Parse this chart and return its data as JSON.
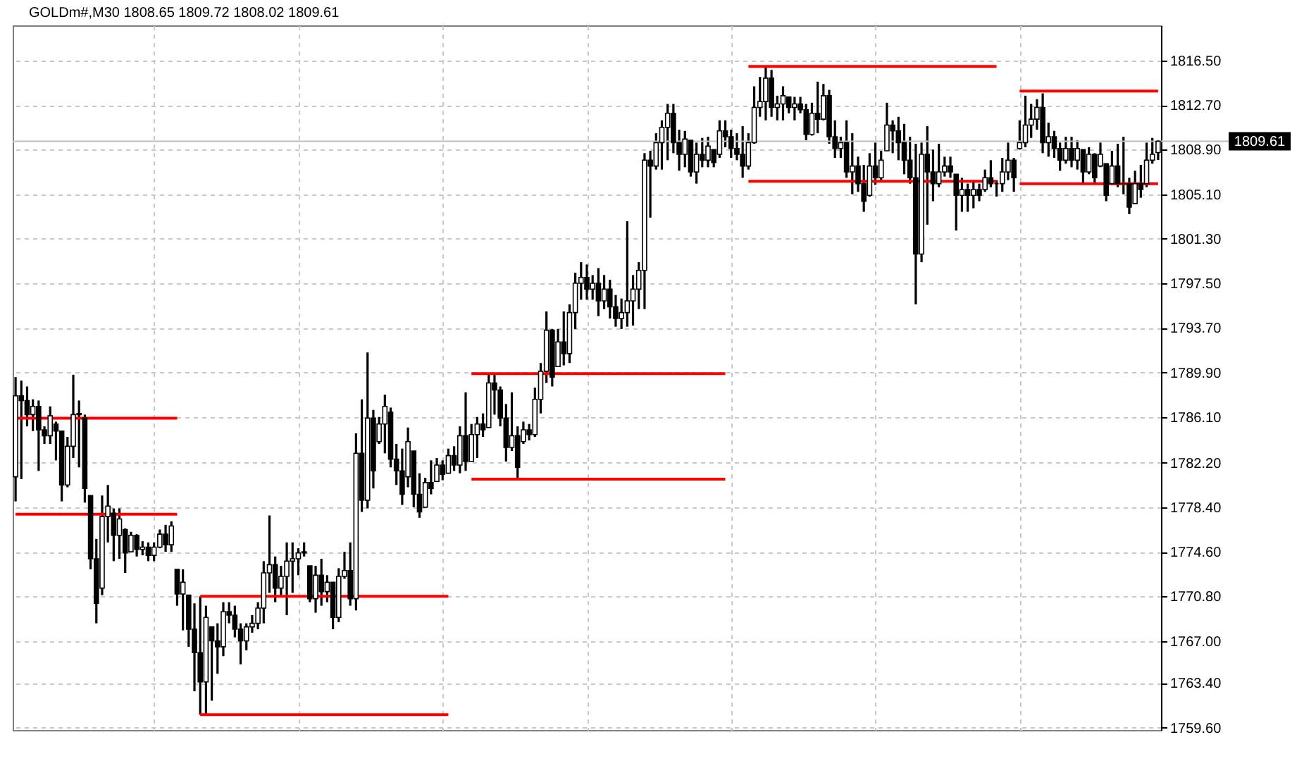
{
  "chart_data": {
    "type": "candlestick",
    "title": "GOLDm#,M30 1808.65 1809.72 1808.02 1809.61",
    "color": "#000000",
    "categories": [
      null,
      null,
      null,
      null,
      null,
      null,
      null,
      null,
      null,
      null,
      null,
      null,
      null,
      null,
      null,
      null,
      null,
      null,
      null,
      null,
      null,
      null,
      null,
      null,
      null,
      null,
      null,
      null,
      null,
      null,
      null,
      null,
      null,
      null,
      null,
      null,
      null,
      null,
      null,
      null,
      null,
      null,
      null,
      null,
      null,
      null,
      null,
      null,
      null,
      null,
      null,
      null,
      null,
      null,
      null,
      null,
      null,
      null,
      null,
      null,
      null,
      null,
      null,
      null,
      null,
      null,
      null,
      null,
      null,
      null,
      null,
      null,
      null,
      null,
      null,
      null,
      null,
      null,
      null,
      null,
      null,
      null,
      null,
      null,
      null,
      null,
      null,
      null,
      null,
      null,
      null,
      null,
      null,
      null,
      null,
      null,
      null,
      null,
      null,
      null,
      null,
      null,
      null,
      null,
      null,
      null,
      null,
      null,
      null,
      null,
      null,
      null,
      null,
      null,
      null,
      null,
      null,
      null,
      null,
      null,
      null,
      null,
      null,
      null,
      null,
      null,
      null,
      null,
      null,
      null,
      null,
      null,
      null,
      null,
      null,
      null,
      null,
      null,
      null,
      null,
      null,
      null,
      null,
      null,
      null,
      null,
      null,
      null,
      null,
      null,
      null,
      null,
      null,
      null,
      null,
      null,
      null,
      null,
      null,
      null,
      null,
      null,
      null,
      null,
      null,
      null,
      null,
      null,
      null,
      null,
      null,
      null,
      null,
      null,
      null,
      null,
      null,
      null,
      null,
      null,
      null,
      null,
      null,
      null,
      null,
      null,
      null,
      null,
      null,
      null,
      null,
      null,
      null,
      null,
      null,
      null,
      null,
      null,
      null
    ],
    "ohlc": [
      [
        1781.0,
        1789.5,
        1778.9,
        1787.9
      ],
      [
        1787.9,
        1789.2,
        1780.8,
        1787.5
      ],
      [
        1787.5,
        1788.7,
        1785.3,
        1786.3
      ],
      [
        1786.3,
        1787.6,
        1784.9,
        1787.0
      ],
      [
        1787.0,
        1787.5,
        1781.5,
        1785.0
      ],
      [
        1785.0,
        1785.3,
        1783.8,
        1784.5
      ],
      [
        1784.5,
        1787.0,
        1783.8,
        1786.2
      ],
      [
        1785.5,
        1785.7,
        1782.4,
        1784.9
      ],
      [
        1784.9,
        1784.9,
        1778.9,
        1780.3
      ],
      [
        1780.3,
        1784.4,
        1780.1,
        1783.6
      ],
      [
        1783.6,
        1789.7,
        1782.6,
        1786.3
      ],
      [
        1786.3,
        1787.5,
        1781.8,
        1786.4
      ],
      [
        1786.0,
        1786.3,
        1778.8,
        1780.0
      ],
      [
        1779.4,
        1779.4,
        1773.1,
        1774.0
      ],
      [
        1774.0,
        1775.7,
        1768.5,
        1770.2
      ],
      [
        1771.5,
        1779.4,
        1770.9,
        1777.6
      ],
      [
        1777.6,
        1780.3,
        1775.4,
        1778.5
      ],
      [
        1777.9,
        1778.3,
        1773.8,
        1776.0
      ],
      [
        1776.0,
        1778.3,
        1774.0,
        1777.4
      ],
      [
        1776.5,
        1776.6,
        1772.8,
        1774.5
      ],
      [
        1774.6,
        1776.3,
        1774.6,
        1776.0
      ],
      [
        1776.0,
        1776.1,
        1774.2,
        1774.8
      ],
      [
        1774.8,
        1775.5,
        1774.3,
        1775.0
      ],
      [
        1775.0,
        1775.4,
        1773.8,
        1774.3
      ],
      [
        1774.3,
        1775.4,
        1773.8,
        1775.0
      ],
      [
        1775.0,
        1776.5,
        1774.9,
        1776.1
      ],
      [
        1776.1,
        1776.9,
        1774.6,
        1775.2
      ],
      [
        1775.2,
        1777.2,
        1774.6,
        1776.8
      ],
      [
        1773.1,
        1773.1,
        1770.0,
        1771.0
      ],
      [
        1771.0,
        1773.1,
        1767.9,
        1772.0
      ],
      [
        1770.9,
        1770.9,
        1766.5,
        1768.0
      ],
      [
        1768.0,
        1770.2,
        1762.7,
        1766.0
      ],
      [
        1766.0,
        1770.8,
        1760.7,
        1763.5
      ],
      [
        1763.5,
        1770.0,
        1760.7,
        1769.0
      ],
      [
        1768.2,
        1768.2,
        1761.9,
        1767.0
      ],
      [
        1767.0,
        1768.5,
        1764.2,
        1766.5
      ],
      [
        1766.5,
        1770.3,
        1765.7,
        1769.5
      ],
      [
        1769.5,
        1770.3,
        1768.5,
        1769.2
      ],
      [
        1769.2,
        1770.0,
        1767.3,
        1768.0
      ],
      [
        1768.0,
        1768.5,
        1765.0,
        1767.0
      ],
      [
        1767.0,
        1768.5,
        1766.2,
        1768.2
      ],
      [
        1768.2,
        1769.2,
        1767.7,
        1768.5
      ],
      [
        1768.5,
        1770.3,
        1768.0,
        1769.8
      ],
      [
        1769.8,
        1773.8,
        1768.5,
        1772.8
      ],
      [
        1772.8,
        1777.7,
        1771.1,
        1773.5
      ],
      [
        1773.5,
        1774.2,
        1770.3,
        1771.5
      ],
      [
        1771.5,
        1773.4,
        1770.8,
        1772.5
      ],
      [
        1772.5,
        1775.4,
        1769.2,
        1773.8
      ],
      [
        1773.8,
        1775.4,
        1771.1,
        1774.0
      ],
      [
        1774.0,
        1774.9,
        1772.6,
        1774.5
      ],
      [
        1774.5,
        1775.4,
        1774.2,
        1774.6
      ],
      [
        1773.4,
        1773.4,
        1770.3,
        1770.6
      ],
      [
        1770.6,
        1773.4,
        1769.4,
        1772.6
      ],
      [
        1772.6,
        1774.0,
        1770.0,
        1771.2
      ],
      [
        1771.2,
        1772.6,
        1770.3,
        1772.0
      ],
      [
        1772.0,
        1772.0,
        1768.0,
        1769.0
      ],
      [
        1769.0,
        1773.2,
        1768.6,
        1772.5
      ],
      [
        1772.5,
        1774.6,
        1772.3,
        1773.0
      ],
      [
        1773.0,
        1775.4,
        1770.0,
        1770.6
      ],
      [
        1770.6,
        1784.7,
        1769.6,
        1783.0
      ],
      [
        1783.0,
        1787.6,
        1778.0,
        1779.0
      ],
      [
        1779.0,
        1791.6,
        1778.3,
        1786.0
      ],
      [
        1786.0,
        1786.7,
        1780.0,
        1781.5
      ],
      [
        1784.0,
        1786.1,
        1783.8,
        1785.5
      ],
      [
        1785.5,
        1788.0,
        1783.0,
        1787.0
      ],
      [
        1786.5,
        1786.9,
        1781.8,
        1782.5
      ],
      [
        1782.5,
        1783.8,
        1780.3,
        1781.5
      ],
      [
        1781.5,
        1783.4,
        1778.6,
        1779.5
      ],
      [
        1781.0,
        1785.2,
        1780.1,
        1784.0
      ],
      [
        1783.2,
        1783.2,
        1778.4,
        1779.5
      ],
      [
        1779.5,
        1781.3,
        1777.5,
        1778.0
      ],
      [
        1778.4,
        1780.9,
        1778.4,
        1780.5
      ],
      [
        1780.5,
        1782.4,
        1779.5,
        1780.0
      ],
      [
        1780.6,
        1782.6,
        1780.6,
        1782.0
      ],
      [
        1782.0,
        1782.4,
        1780.7,
        1781.2
      ],
      [
        1781.3,
        1783.4,
        1781.3,
        1782.8
      ],
      [
        1782.8,
        1783.6,
        1781.5,
        1782.0
      ],
      [
        1782.0,
        1785.3,
        1781.3,
        1784.5
      ],
      [
        1784.5,
        1788.2,
        1781.5,
        1782.3
      ],
      [
        1782.3,
        1785.5,
        1782.3,
        1784.6
      ],
      [
        1784.6,
        1786.1,
        1782.6,
        1785.5
      ],
      [
        1785.5,
        1786.4,
        1784.4,
        1785.0
      ],
      [
        1785.2,
        1789.8,
        1785.2,
        1789.0
      ],
      [
        1789.0,
        1789.8,
        1786.3,
        1788.4
      ],
      [
        1788.4,
        1788.7,
        1785.3,
        1786.0
      ],
      [
        1786.0,
        1787.2,
        1782.3,
        1783.5
      ],
      [
        1783.5,
        1788.2,
        1783.2,
        1784.5
      ],
      [
        1784.5,
        1785.3,
        1780.9,
        1781.8
      ],
      [
        1784.0,
        1785.7,
        1783.8,
        1785.0
      ],
      [
        1785.0,
        1785.5,
        1784.1,
        1784.6
      ],
      [
        1784.6,
        1788.6,
        1784.4,
        1787.6
      ],
      [
        1787.6,
        1790.7,
        1786.4,
        1790.0
      ],
      [
        1790.0,
        1795.1,
        1789.0,
        1793.5
      ],
      [
        1793.5,
        1793.6,
        1788.7,
        1789.5
      ],
      [
        1790.4,
        1793.6,
        1790.4,
        1792.5
      ],
      [
        1792.5,
        1795.1,
        1790.5,
        1791.5
      ],
      [
        1791.5,
        1795.7,
        1790.7,
        1795.0
      ],
      [
        1795.0,
        1798.4,
        1793.6,
        1797.5
      ],
      [
        1797.5,
        1799.3,
        1796.1,
        1798.0
      ],
      [
        1798.0,
        1799.1,
        1796.1,
        1797.0
      ],
      [
        1797.0,
        1798.2,
        1796.1,
        1797.5
      ],
      [
        1797.5,
        1798.8,
        1794.7,
        1796.0
      ],
      [
        1796.0,
        1798.2,
        1795.3,
        1797.0
      ],
      [
        1797.0,
        1797.8,
        1794.5,
        1795.5
      ],
      [
        1795.5,
        1796.5,
        1793.8,
        1794.5
      ],
      [
        1794.5,
        1796.2,
        1793.6,
        1795.0
      ],
      [
        1795.0,
        1802.8,
        1793.8,
        1796.0
      ],
      [
        1796.0,
        1798.2,
        1793.9,
        1797.0
      ],
      [
        1797.0,
        1799.3,
        1795.3,
        1798.6
      ],
      [
        1798.6,
        1808.6,
        1795.3,
        1808.0
      ],
      [
        1808.0,
        1808.8,
        1803.1,
        1807.5
      ],
      [
        1807.5,
        1810.3,
        1807.2,
        1809.5
      ],
      [
        1809.5,
        1811.4,
        1807.2,
        1810.8
      ],
      [
        1810.8,
        1812.8,
        1808.0,
        1812.0
      ],
      [
        1812.0,
        1812.8,
        1808.6,
        1809.5
      ],
      [
        1809.5,
        1810.6,
        1807.1,
        1808.5
      ],
      [
        1808.5,
        1810.5,
        1807.4,
        1809.8
      ],
      [
        1809.7,
        1809.7,
        1806.6,
        1807.0
      ],
      [
        1807.0,
        1809.5,
        1806.0,
        1808.5
      ],
      [
        1808.5,
        1809.9,
        1807.4,
        1808.0
      ],
      [
        1808.0,
        1810.0,
        1807.4,
        1809.2
      ],
      [
        1808.9,
        1808.9,
        1807.4,
        1807.8
      ],
      [
        1808.5,
        1811.4,
        1808.2,
        1810.5
      ],
      [
        1810.5,
        1811.4,
        1809.1,
        1810.0
      ],
      [
        1810.0,
        1810.6,
        1808.2,
        1809.0
      ],
      [
        1809.0,
        1810.3,
        1808.0,
        1808.5
      ],
      [
        1808.5,
        1810.9,
        1806.5,
        1807.5
      ],
      [
        1807.5,
        1810.3,
        1807.2,
        1809.5
      ],
      [
        1809.5,
        1814.3,
        1809.4,
        1812.5
      ],
      [
        1812.5,
        1815.1,
        1811.7,
        1813.0
      ],
      [
        1813.0,
        1816.0,
        1811.4,
        1815.0
      ],
      [
        1815.0,
        1815.7,
        1811.7,
        1812.5
      ],
      [
        1812.5,
        1813.5,
        1811.4,
        1812.8
      ],
      [
        1812.8,
        1814.3,
        1811.4,
        1813.5
      ],
      [
        1813.4,
        1813.4,
        1812.0,
        1812.5
      ],
      [
        1812.5,
        1813.4,
        1811.4,
        1812.8
      ],
      [
        1812.8,
        1813.4,
        1812.0,
        1812.3
      ],
      [
        1812.3,
        1812.8,
        1809.7,
        1810.2
      ],
      [
        1810.2,
        1812.9,
        1810.1,
        1812.0
      ],
      [
        1812.0,
        1814.7,
        1810.3,
        1811.5
      ],
      [
        1811.5,
        1814.5,
        1811.4,
        1813.5
      ],
      [
        1813.5,
        1814.0,
        1809.4,
        1810.0
      ],
      [
        1810.0,
        1811.4,
        1808.2,
        1809.0
      ],
      [
        1809.0,
        1810.0,
        1808.2,
        1809.5
      ],
      [
        1809.5,
        1811.4,
        1806.5,
        1807.0
      ],
      [
        1807.0,
        1810.3,
        1805.1,
        1807.5
      ],
      [
        1807.5,
        1808.3,
        1805.3,
        1806.0
      ],
      [
        1806.0,
        1807.6,
        1803.6,
        1804.5
      ],
      [
        1805.0,
        1808.6,
        1804.9,
        1807.5
      ],
      [
        1807.5,
        1809.5,
        1805.9,
        1806.5
      ],
      [
        1806.5,
        1808.8,
        1806.3,
        1808.0
      ],
      [
        1808.8,
        1812.9,
        1808.8,
        1811.0
      ],
      [
        1811.0,
        1811.4,
        1808.6,
        1810.5
      ],
      [
        1810.5,
        1811.7,
        1808.0,
        1809.5
      ],
      [
        1809.5,
        1811.1,
        1806.8,
        1808.0
      ],
      [
        1808.0,
        1810.0,
        1806.0,
        1806.5
      ],
      [
        1806.5,
        1809.4,
        1795.7,
        1800.0
      ],
      [
        1800.0,
        1809.5,
        1799.3,
        1808.5
      ],
      [
        1808.5,
        1810.9,
        1802.5,
        1807.0
      ],
      [
        1807.0,
        1808.9,
        1804.5,
        1806.0
      ],
      [
        1806.0,
        1809.4,
        1805.7,
        1807.0
      ],
      [
        1807.0,
        1808.3,
        1806.6,
        1807.5
      ],
      [
        1807.5,
        1808.3,
        1806.5,
        1807.0
      ],
      [
        1806.8,
        1806.8,
        1802.0,
        1805.0
      ],
      [
        1805.0,
        1806.5,
        1803.6,
        1805.5
      ],
      [
        1805.5,
        1806.0,
        1803.6,
        1805.0
      ],
      [
        1805.0,
        1806.3,
        1803.9,
        1805.5
      ],
      [
        1805.5,
        1806.0,
        1804.5,
        1805.0
      ],
      [
        1805.5,
        1807.2,
        1805.3,
        1806.5
      ],
      [
        1806.5,
        1808.0,
        1805.7,
        1806.0
      ],
      [
        1806.0,
        1806.3,
        1804.9,
        1806.0
      ],
      [
        1806.0,
        1808.2,
        1805.3,
        1807.0
      ],
      [
        1807.0,
        1809.5,
        1806.3,
        1808.0
      ],
      [
        1808.0,
        1808.2,
        1805.3,
        1806.5
      ],
      [
        1809.0,
        1811.4,
        1808.9,
        1809.5
      ],
      [
        1809.5,
        1813.5,
        1809.1,
        1811.0
      ],
      [
        1811.0,
        1812.8,
        1809.9,
        1811.5
      ],
      [
        1811.5,
        1813.2,
        1810.6,
        1812.5
      ],
      [
        1812.5,
        1813.7,
        1808.6,
        1809.5
      ],
      [
        1809.5,
        1811.2,
        1808.3,
        1810.0
      ],
      [
        1810.0,
        1810.5,
        1808.2,
        1809.0
      ],
      [
        1809.0,
        1809.5,
        1807.1,
        1808.0
      ],
      [
        1808.0,
        1810.0,
        1807.7,
        1809.0
      ],
      [
        1809.0,
        1810.0,
        1807.4,
        1808.0
      ],
      [
        1808.0,
        1809.7,
        1807.2,
        1809.0
      ],
      [
        1808.9,
        1808.9,
        1806.0,
        1807.0
      ],
      [
        1807.0,
        1809.1,
        1806.8,
        1808.5
      ],
      [
        1808.5,
        1808.6,
        1806.0,
        1806.5
      ],
      [
        1807.5,
        1809.5,
        1807.4,
        1808.5
      ],
      [
        1807.7,
        1807.7,
        1804.5,
        1805.0
      ],
      [
        1806.0,
        1808.8,
        1805.9,
        1807.5
      ],
      [
        1807.5,
        1809.4,
        1805.7,
        1806.0
      ],
      [
        1806.0,
        1810.0,
        1805.1,
        1806.0
      ],
      [
        1806.0,
        1806.5,
        1803.4,
        1804.0
      ],
      [
        1804.3,
        1807.1,
        1804.3,
        1806.0
      ],
      [
        1806.0,
        1807.6,
        1804.8,
        1805.5
      ],
      [
        1806.0,
        1809.5,
        1805.7,
        1808.0
      ],
      [
        1808.0,
        1809.9,
        1807.7,
        1808.5
      ],
      [
        1808.65,
        1809.72,
        1808.02,
        1809.61
      ]
    ],
    "series": [
      {
        "type": "line",
        "color": "#ff0000",
        "values": [
          1786,
          1786,
          1786,
          1786,
          1786,
          1786,
          1786,
          1786,
          1786,
          1786,
          1786,
          1786,
          1786,
          1786,
          1786,
          1786,
          1786,
          1786,
          1786,
          1786,
          1786,
          1786,
          1786,
          1786,
          1786,
          1786,
          1786,
          1786,
          1786,
          null,
          null,
          null,
          1770.8,
          1770.8,
          1770.8,
          1770.8,
          1770.8,
          1770.8,
          1770.8,
          1770.8,
          1770.8,
          1770.8,
          1770.8,
          1770.8,
          1770.8,
          1770.8,
          1770.8,
          1770.8,
          1770.8,
          1770.8,
          1770.8,
          1770.8,
          1770.8,
          1770.8,
          1770.8,
          1770.8,
          1770.8,
          1770.8,
          1770.8,
          1770.8,
          1770.8,
          1770.8,
          1770.8,
          1770.8,
          1770.8,
          1770.8,
          1770.8,
          1770.8,
          1770.8,
          1770.8,
          1770.8,
          1770.8,
          1770.8,
          1770.8,
          1770.8,
          1770.8,
          null,
          null,
          null,
          1789.8,
          1789.8,
          1789.8,
          1789.8,
          1789.8,
          1789.8,
          1789.8,
          1789.8,
          1789.8,
          1789.8,
          1789.8,
          1789.8,
          1789.8,
          1789.8,
          1789.8,
          1789.8,
          1789.8,
          1789.8,
          1789.8,
          1789.8,
          1789.8,
          1789.8,
          1789.8,
          1789.8,
          1789.8,
          1789.8,
          1789.8,
          1789.8,
          1789.8,
          1789.8,
          1789.8,
          1789.8,
          1789.8,
          1789.8,
          1789.8,
          1789.8,
          1789.8,
          1789.8,
          1789.8,
          1789.8,
          1789.8,
          1789.8,
          1789.8,
          1789.8,
          1789.8,
          null,
          null,
          null,
          1816,
          1816,
          1816,
          1816,
          1816,
          1816,
          1816,
          1816,
          1816,
          1816,
          1816,
          1816,
          1816,
          1816,
          1816,
          1816,
          1816,
          1816,
          1816,
          1816,
          1816,
          1816,
          1816,
          1816,
          1816,
          1816,
          1816,
          1816,
          1816,
          1816,
          1816,
          1816,
          1816,
          1816,
          1816,
          1816,
          1816,
          1816,
          1816,
          1816,
          1816,
          1816,
          1816,
          1816,
          null,
          null,
          null,
          1813.9,
          1813.9,
          1813.9,
          1813.9,
          1813.9,
          1813.9,
          1813.9,
          1813.9,
          1813.9,
          1813.9,
          1813.9,
          1813.9,
          1813.9,
          1813.9,
          1813.9,
          1813.9,
          1813.9,
          1813.9,
          1813.9,
          1813.9,
          1813.9,
          1813.9,
          1813.9,
          1813.9,
          1813.9
        ]
      },
      {
        "type": "line",
        "color": "#ff0000",
        "values": [
          1777.8,
          1777.8,
          1777.8,
          1777.8,
          1777.8,
          1777.8,
          1777.8,
          1777.8,
          1777.8,
          1777.8,
          1777.8,
          1777.8,
          1777.8,
          1777.8,
          1777.8,
          1777.8,
          1777.8,
          1777.8,
          1777.8,
          1777.8,
          1777.8,
          1777.8,
          1777.8,
          1777.8,
          1777.8,
          1777.8,
          1777.8,
          1777.8,
          1777.8,
          null,
          null,
          null,
          1760.7,
          1760.7,
          1760.7,
          1760.7,
          1760.7,
          1760.7,
          1760.7,
          1760.7,
          1760.7,
          1760.7,
          1760.7,
          1760.7,
          1760.7,
          1760.7,
          1760.7,
          1760.7,
          1760.7,
          1760.7,
          1760.7,
          1760.7,
          1760.7,
          1760.7,
          1760.7,
          1760.7,
          1760.7,
          1760.7,
          1760.7,
          1760.7,
          1760.7,
          1760.7,
          1760.7,
          1760.7,
          1760.7,
          1760.7,
          1760.7,
          1760.7,
          1760.7,
          1760.7,
          1760.7,
          1760.7,
          1760.7,
          1760.7,
          1760.7,
          1760.7,
          null,
          null,
          null,
          1780.8,
          1780.8,
          1780.8,
          1780.8,
          1780.8,
          1780.8,
          1780.8,
          1780.8,
          1780.8,
          1780.8,
          1780.8,
          1780.8,
          1780.8,
          1780.8,
          1780.8,
          1780.8,
          1780.8,
          1780.8,
          1780.8,
          1780.8,
          1780.8,
          1780.8,
          1780.8,
          1780.8,
          1780.8,
          1780.8,
          1780.8,
          1780.8,
          1780.8,
          1780.8,
          1780.8,
          1780.8,
          1780.8,
          1780.8,
          1780.8,
          1780.8,
          1780.8,
          1780.8,
          1780.8,
          1780.8,
          1780.8,
          1780.8,
          1780.8,
          1780.8,
          1780.8,
          null,
          null,
          null,
          1806.2,
          1806.2,
          1806.2,
          1806.2,
          1806.2,
          1806.2,
          1806.2,
          1806.2,
          1806.2,
          1806.2,
          1806.2,
          1806.2,
          1806.2,
          1806.2,
          1806.2,
          1806.2,
          1806.2,
          1806.2,
          1806.2,
          1806.2,
          1806.2,
          1806.2,
          1806.2,
          1806.2,
          1806.2,
          1806.2,
          1806.2,
          1806.2,
          1806.2,
          1806.2,
          1806.2,
          1806.2,
          1806.2,
          1806.2,
          1806.2,
          1806.2,
          1806.2,
          1806.2,
          1806.2,
          1806.2,
          1806.2,
          1806.2,
          1806.2,
          1806.2,
          null,
          null,
          null,
          1806,
          1806,
          1806,
          1806,
          1806,
          1806,
          1806,
          1806,
          1806,
          1806,
          1806,
          1806,
          1806,
          1806,
          1806,
          1806,
          1806,
          1806,
          1806,
          1806,
          1806,
          1806,
          1806,
          1806,
          1806
        ]
      }
    ],
    "ylim": [
      1759.4,
      1819.5
    ],
    "yticks": [
      {
        "value": 1759.6,
        "label": "1759.60"
      },
      {
        "value": 1763.4,
        "label": "1763.40"
      },
      {
        "value": 1767,
        "label": "1767.00"
      },
      {
        "value": 1770.8,
        "label": "1770.80"
      },
      {
        "value": 1774.6,
        "label": "1774.60"
      },
      {
        "value": 1778.4,
        "label": "1778.40"
      },
      {
        "value": 1782.2,
        "label": "1782.20"
      },
      {
        "value": 1786.1,
        "label": "1786.10"
      },
      {
        "value": 1789.9,
        "label": "1789.90"
      },
      {
        "value": 1793.7,
        "label": "1793.70"
      },
      {
        "value": 1797.5,
        "label": "1797.50"
      },
      {
        "value": 1801.3,
        "label": "1801.30"
      },
      {
        "value": 1805.1,
        "label": "1805.10"
      },
      {
        "value": 1808.9,
        "label": "1808.90"
      },
      {
        "value": 1812.7,
        "label": "1812.70"
      },
      {
        "value": 1816.5,
        "label": "1816.50"
      }
    ],
    "ref_lines": [
      {
        "axis": "y",
        "value": 1809.61,
        "label": "1809.61",
        "color": "#c0c0c0"
      }
    ],
    "grid": true,
    "tick_labels": "y"
  }
}
